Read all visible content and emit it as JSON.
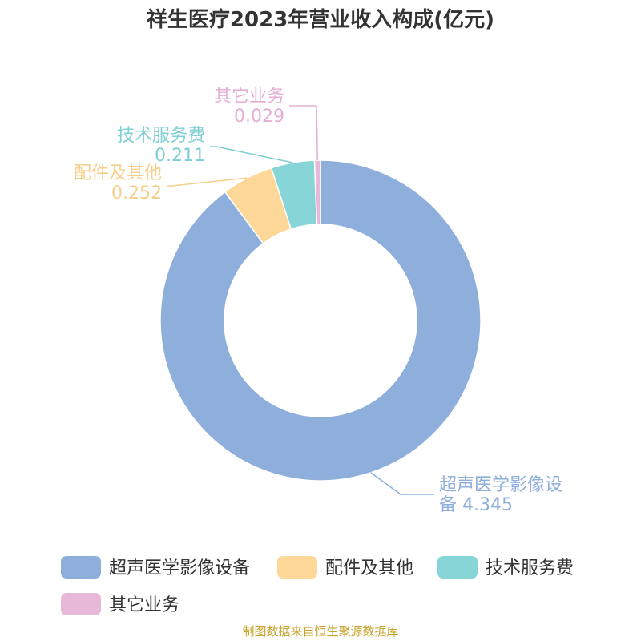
{
  "chart_data": {
    "type": "pie",
    "title": "祥生医疗2023年营业收入构成(亿元)",
    "categories": [
      "超声医学影像设备",
      "配件及其他",
      "技术服务费",
      "其它业务"
    ],
    "values": [
      4.345,
      0.252,
      0.211,
      0.029
    ],
    "value_labels": [
      "4.345",
      "0.252",
      "0.211",
      "0.029"
    ],
    "slice_labels": [
      [
        "超声医学影像设",
        "备 4.345"
      ],
      [
        "配件及其他",
        "0.252"
      ],
      [
        "技术服务费",
        "0.211"
      ],
      [
        "其它业务",
        "0.029"
      ]
    ],
    "colors": [
      "#8eaedb",
      "#fdd898",
      "#88d5d8",
      "#e8b8d8"
    ],
    "label_colors": [
      "#8eaedb",
      "#f6cf8a",
      "#7dcfd3",
      "#e4aed2"
    ],
    "donut": true,
    "legend_position": "bottom",
    "source": "制图数据来自恒生聚源数据库"
  }
}
